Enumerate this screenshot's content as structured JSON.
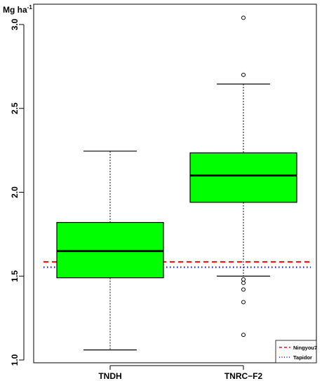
{
  "chart_data": {
    "type": "box",
    "unit_label": {
      "main": "Mg ha",
      "superscript": "-1"
    },
    "categories": [
      "TNDH",
      "TNRC−F2"
    ],
    "ylim": [
      1.0,
      3.12
    ],
    "yticks": [
      1.0,
      1.5,
      2.0,
      2.5,
      3.0
    ],
    "ytick_labels": [
      "1.0",
      "1.5",
      "2.0",
      "2.5",
      "3.0"
    ],
    "box_color": "#00ff00",
    "boxes": [
      {
        "category": "TNDH",
        "whisker_low": 1.06,
        "q1": 1.49,
        "median": 1.65,
        "q3": 1.82,
        "whisker_high": 2.245,
        "outliers": []
      },
      {
        "category": "TNRC−F2",
        "whisker_low": 1.5,
        "q1": 1.94,
        "median": 2.1,
        "q3": 2.235,
        "whisker_high": 2.645,
        "outliers": [
          1.48,
          1.46,
          1.42,
          1.345,
          1.15,
          2.7,
          3.04
        ]
      }
    ],
    "reference_lines": [
      {
        "name": "Ningyou7",
        "value": 1.585,
        "color": "#ff0000",
        "style": "dashed"
      },
      {
        "name": "Tapidor",
        "value": 1.553,
        "color": "#0000ff",
        "style": "dotted"
      }
    ],
    "legend_position": "bottom-right"
  }
}
